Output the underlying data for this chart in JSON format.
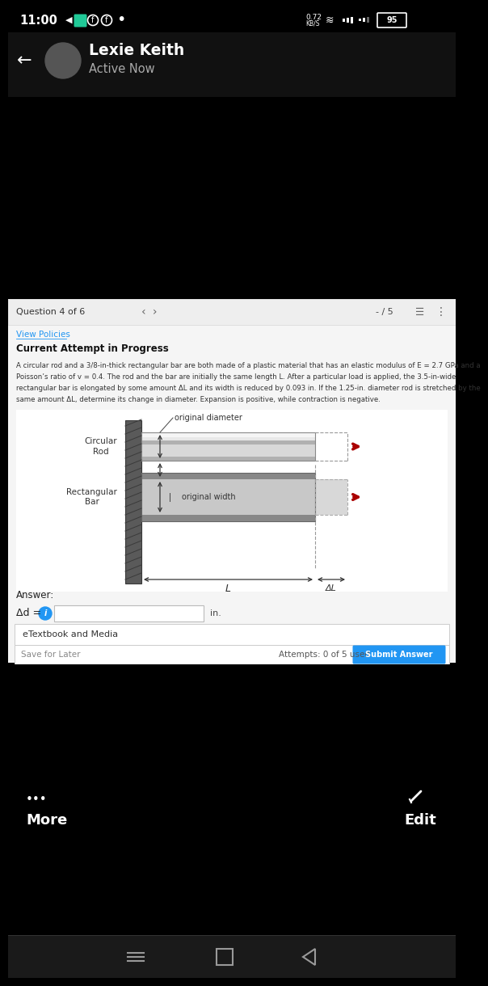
{
  "bg_black": "#000000",
  "bg_content": "#f0f0f0",
  "status_bar_text": "11:00",
  "battery": "95",
  "header_name": "Lexie Keith",
  "header_status": "Active Now",
  "question_bar": "Question 4 of 6",
  "score": "- / 5",
  "view_policies": "View Policies",
  "current_attempt": "Current Attempt in Progress",
  "label_circular_rod": "Circular\nRod",
  "label_rectangular_bar": "Rectangular\nBar",
  "label_original_diameter": "original diameter",
  "label_original_width": "original width",
  "label_L": "L",
  "label_deltaL": "ΔL",
  "answer_label": "Answer:",
  "delta_d_label": "Δd =",
  "unit_label": "in.",
  "etextbook": "eTextbook and Media",
  "save_later": "Save for Later",
  "attempts_text": "Attempts: 0 of 5 used",
  "submit_text": "Submit Answer",
  "more_text": "More",
  "edit_text": "Edit",
  "blue_color": "#2196f3",
  "submit_blue": "#2196f3",
  "link_blue": "#2196f3",
  "arrow_red": "#aa0000",
  "wall_color": "#5a5a5a",
  "problem_lines": [
    "A circular rod and a 3/8-in-thick rectangular bar are both made of a plastic material that has an elastic modulus of E = 2.7 GPa and a",
    "Poisson’s ratio of v = 0.4. The rod and the bar are initially the same length L. After a particular load is applied, the 3.5-in-wide",
    "rectangular bar is elongated by some amount ΔL and its width is reduced by 0.093 in. If the 1.25-in. diameter rod is stretched by the",
    "same amount ΔL, determine its change in diameter. Expansion is positive, while contraction is negative."
  ]
}
